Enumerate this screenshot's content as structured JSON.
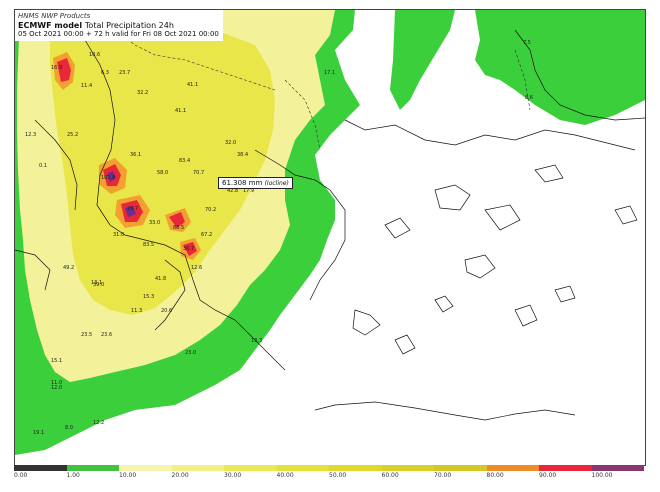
{
  "header": {
    "org": "HNMS NWP Products",
    "model": "ECMWF model",
    "product": "Total Precipitation 24h",
    "valid": "05 Oct 2021 00:00 + 72 h valid for Fri 08 Oct 2021 00:00"
  },
  "callout": {
    "value": "61.308 mm",
    "place": "(Iocline)"
  },
  "colors": {
    "sea_bg": "#ffffff",
    "green": "#3ccf3c",
    "yellow_light": "#f3f29a",
    "yellow": "#e9e64a",
    "orange": "#f2a030",
    "red": "#e8283a",
    "purple": "#6a2f8a"
  },
  "scale": {
    "labels": [
      "0.00",
      "1.00",
      "10.00",
      "20.00",
      "30.00",
      "40.00",
      "50.00",
      "60.00",
      "70.00",
      "80.00",
      "90.00",
      "100.00"
    ],
    "colors": [
      "#333333",
      "#41c341",
      "#f6f5b0",
      "#f1ef88",
      "#ebe858",
      "#e6e13a",
      "#dfd82e",
      "#d9d12a",
      "#d4c827",
      "#ef8c2a",
      "#e8283a",
      "#8a3673"
    ]
  },
  "values": [
    {
      "t": "10.6"
    },
    {
      "t": "16.9"
    },
    {
      "t": "23.7"
    },
    {
      "t": "11.4"
    },
    {
      "t": "6.3"
    },
    {
      "t": "41.1"
    },
    {
      "t": "32.2"
    },
    {
      "t": "17.1"
    },
    {
      "t": "7.5"
    },
    {
      "t": "8.6"
    },
    {
      "t": "12.3"
    },
    {
      "t": "25.2"
    },
    {
      "t": "41.1"
    },
    {
      "t": "32.0"
    },
    {
      "t": "38.4"
    },
    {
      "t": "0.1"
    },
    {
      "t": "36.1"
    },
    {
      "t": "83.4"
    },
    {
      "t": "58.0"
    },
    {
      "t": "70.7"
    },
    {
      "t": "42.8"
    },
    {
      "t": "101.8"
    },
    {
      "t": "17.9"
    },
    {
      "t": "29.7"
    },
    {
      "t": "70.2"
    },
    {
      "t": "33.0"
    },
    {
      "t": "88.5"
    },
    {
      "t": "67.2"
    },
    {
      "t": "31.0"
    },
    {
      "t": "83.5"
    },
    {
      "t": "49.2"
    },
    {
      "t": "36.7"
    },
    {
      "t": "12.6"
    },
    {
      "t": "13.1"
    },
    {
      "t": "39.0"
    },
    {
      "t": "41.8"
    },
    {
      "t": "15.3"
    },
    {
      "t": "11.3"
    },
    {
      "t": "20.6"
    },
    {
      "t": "23.5"
    },
    {
      "t": "23.6"
    },
    {
      "t": "15.1"
    },
    {
      "t": "12.0"
    },
    {
      "t": "23.0"
    },
    {
      "t": "11.0"
    },
    {
      "t": "12.2"
    },
    {
      "t": "19.1"
    },
    {
      "t": "8.0"
    },
    {
      "t": "13.3"
    }
  ]
}
